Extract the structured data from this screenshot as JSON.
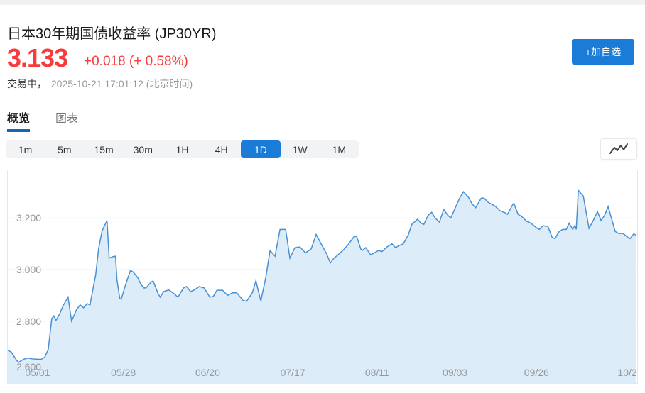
{
  "header": {
    "title": "日本30年期国债收益率 (JP30YR)",
    "price": "3.133",
    "change": "+0.018 (+ 0.58%)",
    "status_label": "交易中，",
    "timestamp": "2025-10-21 17:01:12 (北京时间)",
    "add_watchlist_label": "+加自选"
  },
  "tabs": [
    {
      "label": "概览",
      "active": true
    },
    {
      "label": "图表",
      "active": false
    }
  ],
  "timeframes": [
    {
      "label": "1m",
      "active": false
    },
    {
      "label": "5m",
      "active": false
    },
    {
      "label": "15m",
      "active": false
    },
    {
      "label": "30m",
      "active": false
    },
    {
      "label": "1H",
      "active": false
    },
    {
      "label": "4H",
      "active": false
    },
    {
      "label": "1D",
      "active": true
    },
    {
      "label": "1W",
      "active": false
    },
    {
      "label": "1M",
      "active": false
    }
  ],
  "icons": {
    "chart_type": "line-chart-icon"
  },
  "colors": {
    "accent_blue": "#1b7cd8",
    "tab_underline": "#1565b8",
    "price_red": "#f53b3b",
    "chart_line": "#4a90d2",
    "chart_fill": "#ddecf9"
  },
  "chart_data": {
    "type": "area",
    "title": "日本30年期国债收益率 1D",
    "xlabel": "",
    "ylabel": "",
    "grid": true,
    "ylim": [
      2.56,
      3.385
    ],
    "x_range": [
      0,
      888
    ],
    "y_ticks": [
      {
        "value": 3.2,
        "label": "3.200"
      },
      {
        "value": 3.0,
        "label": "3.000"
      },
      {
        "value": 2.8,
        "label": "2.800"
      },
      {
        "value": 2.6,
        "label": "2.600"
      }
    ],
    "x_labels": [
      {
        "text": "05/01",
        "x": 42
      },
      {
        "text": "05/28",
        "x": 163
      },
      {
        "text": "06/20",
        "x": 282
      },
      {
        "text": "07/17",
        "x": 402
      },
      {
        "text": "08/11",
        "x": 521
      },
      {
        "text": "09/03",
        "x": 631
      },
      {
        "text": "09/26",
        "x": 746
      },
      {
        "text": "10/2",
        "x": 874
      }
    ],
    "colors": {
      "line": "#4a90d2",
      "fill": "#ddecf9",
      "grid": "#ececec"
    },
    "points": [
      [
        0,
        2.687
      ],
      [
        5,
        2.68
      ],
      [
        12,
        2.65
      ],
      [
        15,
        2.64
      ],
      [
        22,
        2.652
      ],
      [
        28,
        2.657
      ],
      [
        34,
        2.654
      ],
      [
        40,
        2.653
      ],
      [
        47,
        2.652
      ],
      [
        52,
        2.66
      ],
      [
        57,
        2.69
      ],
      [
        62,
        2.81
      ],
      [
        65,
        2.82
      ],
      [
        68,
        2.803
      ],
      [
        73,
        2.827
      ],
      [
        78,
        2.86
      ],
      [
        85,
        2.893
      ],
      [
        90,
        2.8
      ],
      [
        97,
        2.845
      ],
      [
        102,
        2.863
      ],
      [
        107,
        2.852
      ],
      [
        112,
        2.868
      ],
      [
        116,
        2.863
      ],
      [
        120,
        2.923
      ],
      [
        124,
        2.98
      ],
      [
        128,
        3.08
      ],
      [
        133,
        3.15
      ],
      [
        140,
        3.19
      ],
      [
        143,
        3.044
      ],
      [
        148,
        3.05
      ],
      [
        152,
        3.052
      ],
      [
        154,
        2.96
      ],
      [
        158,
        2.888
      ],
      [
        160,
        2.885
      ],
      [
        166,
        2.94
      ],
      [
        173,
        2.997
      ],
      [
        177,
        2.99
      ],
      [
        183,
        2.97
      ],
      [
        188,
        2.942
      ],
      [
        192,
        2.929
      ],
      [
        195,
        2.929
      ],
      [
        202,
        2.951
      ],
      [
        205,
        2.956
      ],
      [
        212,
        2.907
      ],
      [
        215,
        2.893
      ],
      [
        220,
        2.915
      ],
      [
        227,
        2.921
      ],
      [
        233,
        2.91
      ],
      [
        240,
        2.893
      ],
      [
        248,
        2.929
      ],
      [
        252,
        2.934
      ],
      [
        258,
        2.915
      ],
      [
        263,
        2.921
      ],
      [
        270,
        2.934
      ],
      [
        277,
        2.929
      ],
      [
        285,
        2.893
      ],
      [
        290,
        2.896
      ],
      [
        295,
        2.92
      ],
      [
        303,
        2.92
      ],
      [
        310,
        2.9
      ],
      [
        317,
        2.91
      ],
      [
        323,
        2.91
      ],
      [
        332,
        2.88
      ],
      [
        337,
        2.877
      ],
      [
        345,
        2.91
      ],
      [
        350,
        2.957
      ],
      [
        357,
        2.878
      ],
      [
        364,
        2.97
      ],
      [
        370,
        3.074
      ],
      [
        377,
        3.052
      ],
      [
        384,
        3.156
      ],
      [
        392,
        3.156
      ],
      [
        398,
        3.044
      ],
      [
        405,
        3.085
      ],
      [
        412,
        3.088
      ],
      [
        420,
        3.065
      ],
      [
        428,
        3.08
      ],
      [
        435,
        3.136
      ],
      [
        442,
        3.1
      ],
      [
        450,
        3.06
      ],
      [
        455,
        3.025
      ],
      [
        460,
        3.044
      ],
      [
        467,
        3.06
      ],
      [
        473,
        3.075
      ],
      [
        480,
        3.096
      ],
      [
        488,
        3.126
      ],
      [
        492,
        3.13
      ],
      [
        498,
        3.08
      ],
      [
        500,
        3.074
      ],
      [
        505,
        3.085
      ],
      [
        512,
        3.057
      ],
      [
        518,
        3.066
      ],
      [
        523,
        3.074
      ],
      [
        528,
        3.07
      ],
      [
        535,
        3.088
      ],
      [
        542,
        3.1
      ],
      [
        547,
        3.085
      ],
      [
        552,
        3.093
      ],
      [
        558,
        3.1
      ],
      [
        565,
        3.134
      ],
      [
        570,
        3.175
      ],
      [
        578,
        3.195
      ],
      [
        583,
        3.18
      ],
      [
        587,
        3.175
      ],
      [
        593,
        3.21
      ],
      [
        598,
        3.222
      ],
      [
        603,
        3.2
      ],
      [
        609,
        3.184
      ],
      [
        615,
        3.233
      ],
      [
        621,
        3.21
      ],
      [
        625,
        3.2
      ],
      [
        633,
        3.25
      ],
      [
        638,
        3.28
      ],
      [
        643,
        3.302
      ],
      [
        650,
        3.28
      ],
      [
        655,
        3.255
      ],
      [
        660,
        3.24
      ],
      [
        668,
        3.277
      ],
      [
        672,
        3.277
      ],
      [
        678,
        3.26
      ],
      [
        687,
        3.247
      ],
      [
        695,
        3.227
      ],
      [
        702,
        3.22
      ],
      [
        705,
        3.214
      ],
      [
        712,
        3.25
      ],
      [
        714,
        3.257
      ],
      [
        720,
        3.214
      ],
      [
        725,
        3.206
      ],
      [
        732,
        3.187
      ],
      [
        738,
        3.18
      ],
      [
        747,
        3.16
      ],
      [
        750,
        3.156
      ],
      [
        755,
        3.17
      ],
      [
        762,
        3.167
      ],
      [
        768,
        3.125
      ],
      [
        772,
        3.12
      ],
      [
        778,
        3.148
      ],
      [
        783,
        3.156
      ],
      [
        788,
        3.156
      ],
      [
        792,
        3.18
      ],
      [
        797,
        3.156
      ],
      [
        800,
        3.17
      ],
      [
        802,
        3.156
      ],
      [
        805,
        3.307
      ],
      [
        812,
        3.285
      ],
      [
        820,
        3.16
      ],
      [
        826,
        3.19
      ],
      [
        832,
        3.225
      ],
      [
        837,
        3.19
      ],
      [
        842,
        3.21
      ],
      [
        847,
        3.244
      ],
      [
        857,
        3.148
      ],
      [
        862,
        3.14
      ],
      [
        868,
        3.14
      ],
      [
        875,
        3.125
      ],
      [
        878,
        3.12
      ],
      [
        883,
        3.138
      ],
      [
        887,
        3.133
      ]
    ]
  }
}
